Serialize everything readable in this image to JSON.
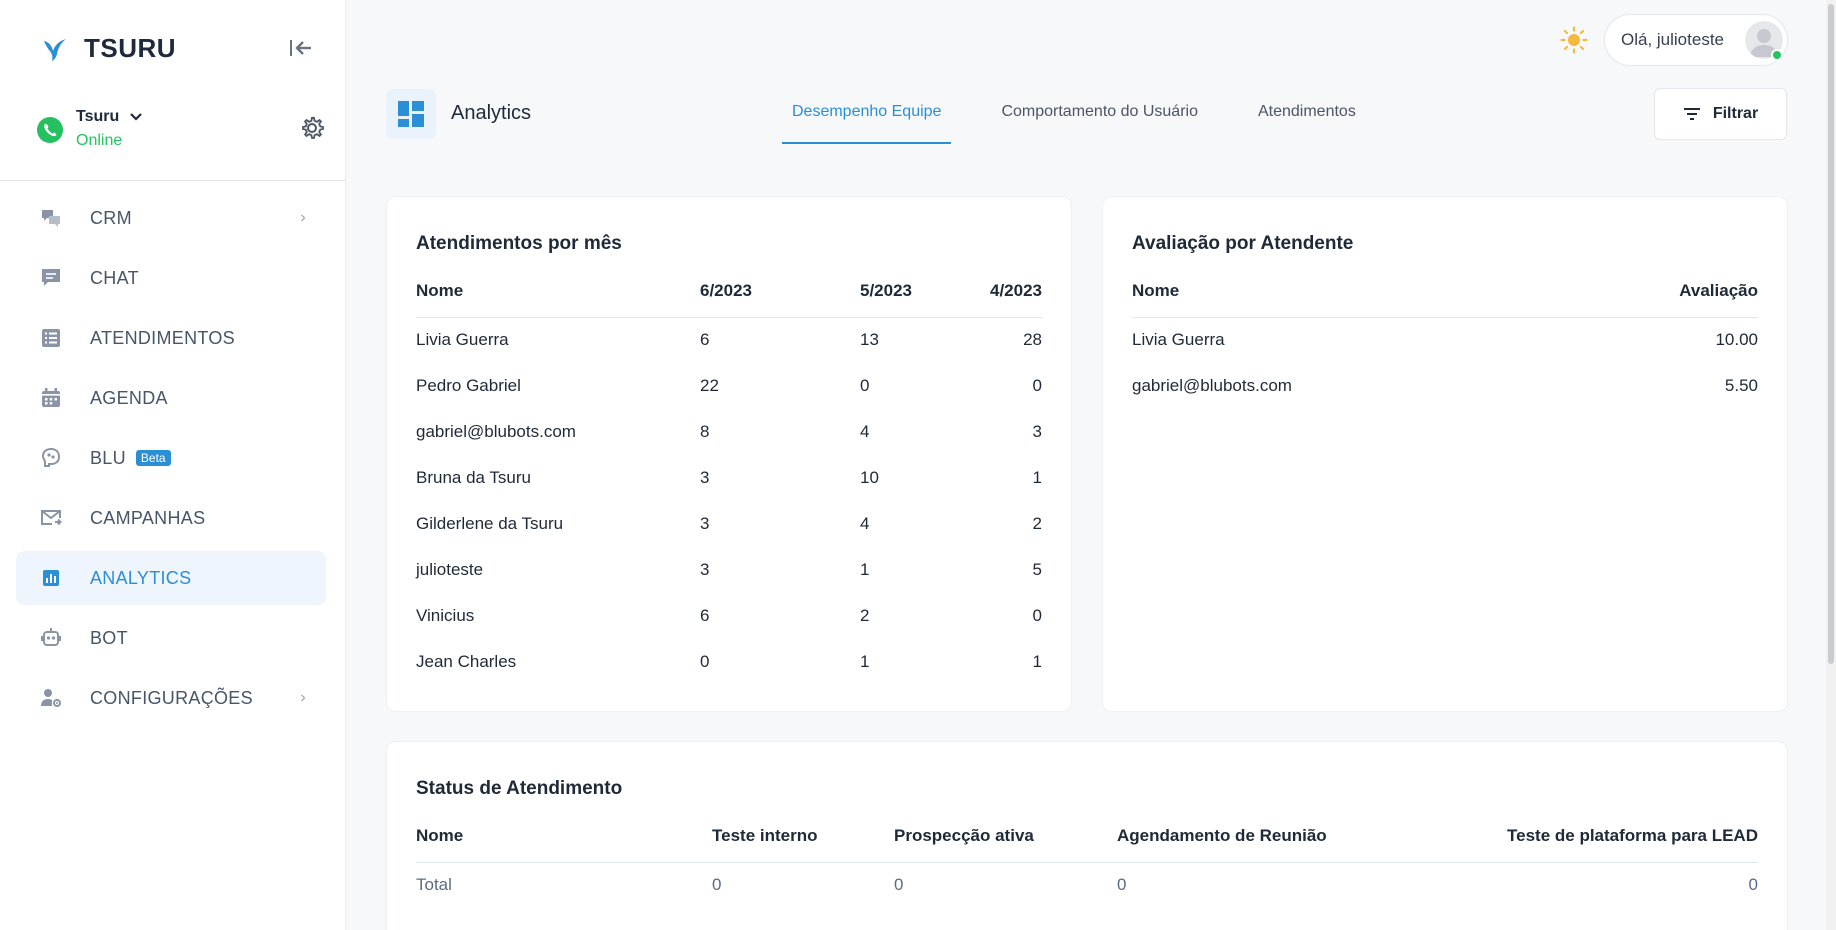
{
  "brand": {
    "name": "TSURU"
  },
  "account": {
    "name": "Tsuru",
    "status": "Online"
  },
  "nav": [
    {
      "label": "CRM",
      "icon": "crm-chat-icon",
      "has_chevron": true
    },
    {
      "label": "CHAT",
      "icon": "chat-icon"
    },
    {
      "label": "ATENDIMENTOS",
      "icon": "list-icon"
    },
    {
      "label": "AGENDA",
      "icon": "calendar-icon"
    },
    {
      "label": "BLU",
      "icon": "brain-icon",
      "badge": "Beta"
    },
    {
      "label": "CAMPANHAS",
      "icon": "mail-send-icon"
    },
    {
      "label": "ANALYTICS",
      "icon": "analytics-icon",
      "active": true
    },
    {
      "label": "BOT",
      "icon": "robot-icon"
    },
    {
      "label": "CONFIGURAÇÕES",
      "icon": "user-gear-icon",
      "has_chevron": true
    }
  ],
  "topbar": {
    "greeting": "Olá, julioteste"
  },
  "page": {
    "title": "Analytics",
    "tabs": [
      "Desempenho Equipe",
      "Comportamento do Usuário",
      "Atendimentos"
    ],
    "active_tab": 0,
    "filter_label": "Filtrar"
  },
  "monthly": {
    "title": "Atendimentos por mês",
    "headers": [
      "Nome",
      "6/2023",
      "5/2023",
      "4/2023"
    ],
    "rows": [
      [
        "Livia Guerra",
        "6",
        "13",
        "28"
      ],
      [
        "Pedro Gabriel",
        "22",
        "0",
        "0"
      ],
      [
        "gabriel@blubots.com",
        "8",
        "4",
        "3"
      ],
      [
        "Bruna da Tsuru",
        "3",
        "10",
        "1"
      ],
      [
        "Gilderlene da Tsuru",
        "3",
        "4",
        "2"
      ],
      [
        "julioteste",
        "3",
        "1",
        "5"
      ],
      [
        "Vinicius",
        "6",
        "2",
        "0"
      ],
      [
        "Jean Charles",
        "0",
        "1",
        "1"
      ]
    ]
  },
  "rating": {
    "title": "Avaliação por Atendente",
    "headers": [
      "Nome",
      "Avaliação"
    ],
    "rows": [
      [
        "Livia Guerra",
        "10.00"
      ],
      [
        "gabriel@blubots.com",
        "5.50"
      ]
    ]
  },
  "status": {
    "title": "Status de Atendimento",
    "headers": [
      "Nome",
      "Teste interno",
      "Prospecção ativa",
      "Agendamento de Reunião",
      "Teste de plataforma para LEAD"
    ],
    "rows": [
      [
        "Total",
        "0",
        "0",
        "0",
        "0"
      ]
    ]
  },
  "colors": {
    "accent": "#2b8fd6",
    "online": "#22c55e",
    "sun": "#f5b93f"
  }
}
